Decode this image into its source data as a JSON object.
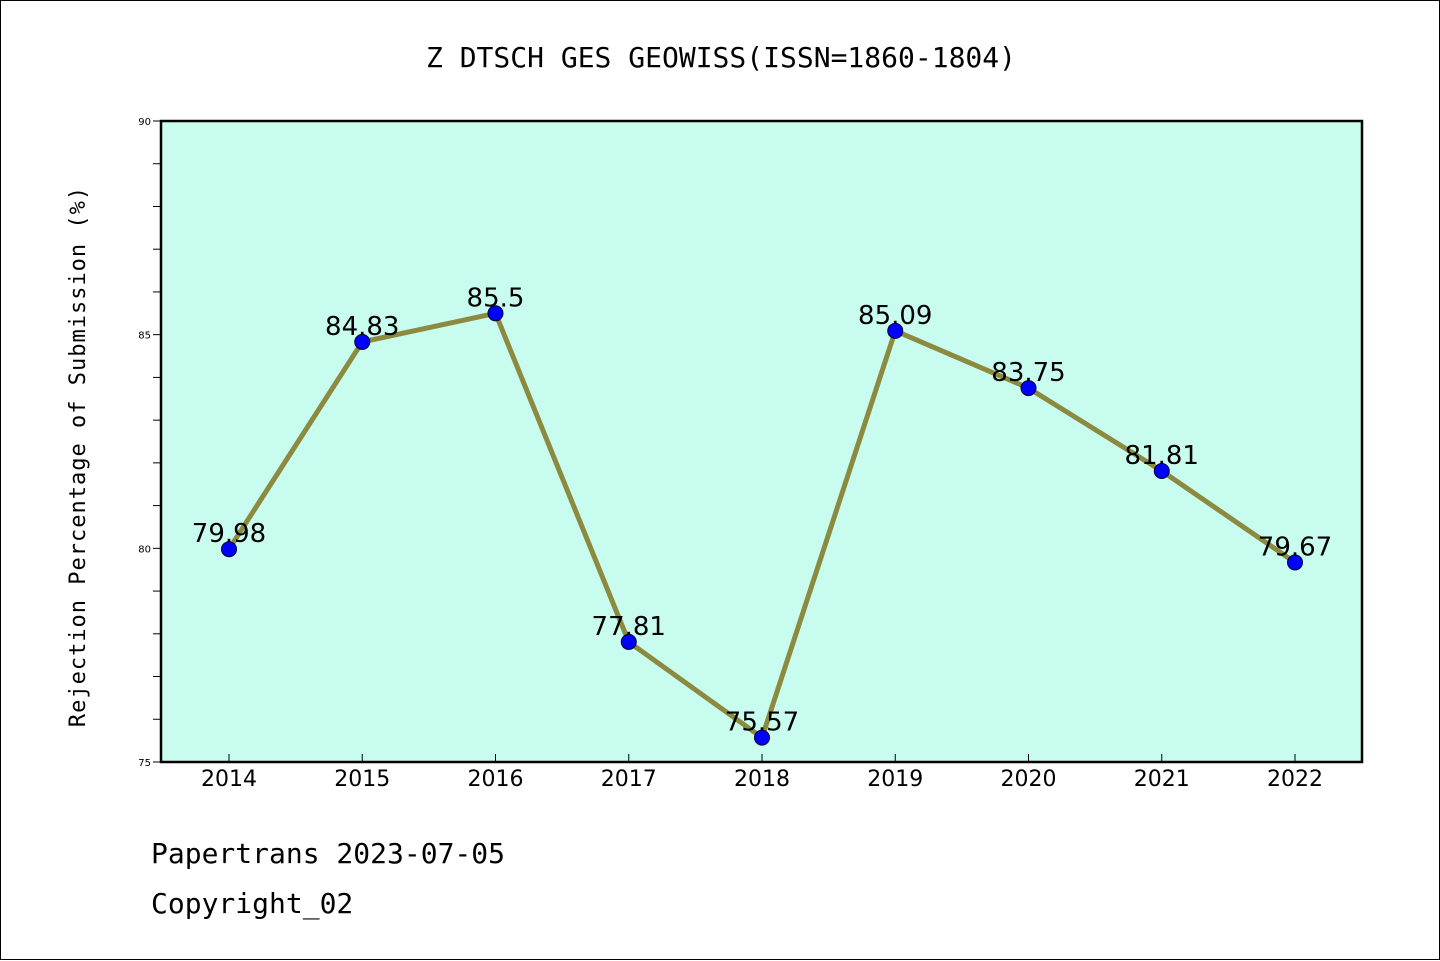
{
  "chart_data": {
    "type": "line",
    "title": "Z DTSCH GES GEOWISS(ISSN=1860-1804)",
    "xlabel": "",
    "ylabel": "Rejection Percentage of Submission (%)",
    "categories": [
      "2014",
      "2015",
      "2016",
      "2017",
      "2018",
      "2019",
      "2020",
      "2021",
      "2022"
    ],
    "values": [
      79.98,
      84.83,
      85.5,
      77.81,
      75.57,
      85.09,
      83.75,
      81.81,
      79.67
    ],
    "data_labels": [
      "79.98",
      "84.83",
      "85.5",
      "77.81",
      "75.57",
      "85.09",
      "83.75",
      "81.81",
      "79.67"
    ],
    "ylim": [
      75,
      90
    ],
    "yticks": [
      "75",
      "80",
      "85",
      "90"
    ],
    "grid": false,
    "colors": {
      "plot_background": "#c8fcee",
      "line": "#8b8a3f",
      "marker": "#0000ff"
    }
  },
  "footer": {
    "line1": "Papertrans 2023-07-05",
    "line2": "Copyright_02"
  }
}
